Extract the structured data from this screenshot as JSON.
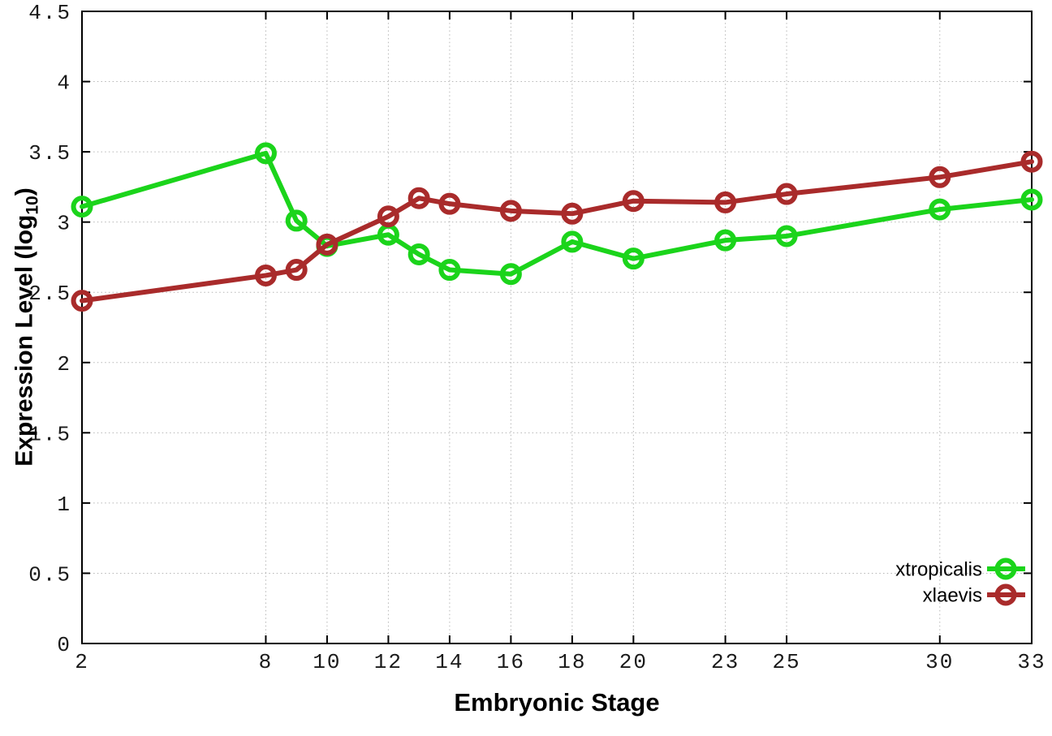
{
  "chart_data": {
    "type": "line",
    "title": "",
    "xlabel": "Embryonic Stage",
    "ylabel": "Expression Level (log10)",
    "ylabel_parts": {
      "pre": "Expression Level (log",
      "sub": "10",
      "post": ")"
    },
    "xlim": [
      2,
      33
    ],
    "ylim": [
      0,
      4.5
    ],
    "x_ticks": [
      2,
      8,
      10,
      12,
      14,
      16,
      18,
      20,
      23,
      25,
      30,
      33
    ],
    "y_ticks": [
      0,
      0.5,
      1,
      1.5,
      2,
      2.5,
      3,
      3.5,
      4,
      4.5
    ],
    "grid": true,
    "legend_position": "bottom-right",
    "x": [
      2,
      8,
      9,
      10,
      12,
      13,
      14,
      16,
      18,
      20,
      23,
      25,
      30,
      33
    ],
    "series": [
      {
        "name": "xtropicalis",
        "color": "#1bd41b",
        "marker": "open-circle",
        "values": [
          3.11,
          3.49,
          3.01,
          2.83,
          2.91,
          2.77,
          2.66,
          2.63,
          2.86,
          2.74,
          2.87,
          2.9,
          3.09,
          3.16
        ]
      },
      {
        "name": "xlaevis",
        "color": "#a92b2b",
        "marker": "open-circle",
        "values": [
          2.44,
          2.62,
          2.66,
          2.84,
          3.04,
          3.17,
          3.13,
          3.08,
          3.06,
          3.15,
          3.14,
          3.2,
          3.32,
          3.43
        ]
      }
    ],
    "colors": {
      "grid": "#b6b6b6",
      "border": "#000000",
      "tick_text": "#1a1a1a"
    }
  }
}
